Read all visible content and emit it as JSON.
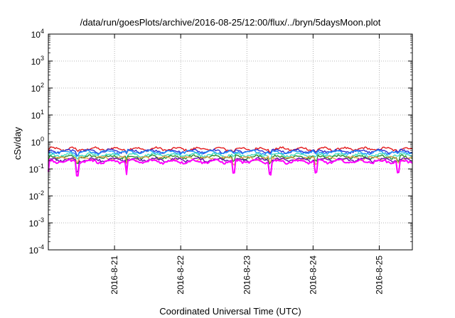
{
  "chart_data": {
    "type": "line",
    "title": "/data/run/goesPlots/archive/2016-08-25/12:00/flux/../bryn/5daysMoon.plot",
    "xlabel": "Coordinated Universal Time (UTC)",
    "ylabel": "cSv/day",
    "y_scale": "log",
    "ylim": [
      0.0001,
      10000
    ],
    "xlim": [
      "2016-08-20 00:00",
      "2016-08-25 12:00"
    ],
    "x_ticks": [
      "2016-8-21",
      "2016-8-22",
      "2016-8-23",
      "2016-8-24",
      "2016-8-25"
    ],
    "y_ticks": [
      {
        "base": "10",
        "exp": "4"
      },
      {
        "base": "10",
        "exp": "3"
      },
      {
        "base": "10",
        "exp": "2"
      },
      {
        "base": "10",
        "exp": "1"
      },
      {
        "base": "10",
        "exp": "0"
      },
      {
        "base": "10",
        "exp": "-1"
      },
      {
        "base": "10",
        "exp": "-2"
      },
      {
        "base": "10",
        "exp": "-3"
      },
      {
        "base": "10",
        "exp": "-4"
      }
    ],
    "grid": true,
    "legend": "none",
    "series": [
      {
        "color": "#e41a1c",
        "base": 0.55
      },
      {
        "color": "#2f2fd0",
        "base": 0.46
      },
      {
        "color": "#1e90ff",
        "base": 0.42
      },
      {
        "color": "#40e0c0",
        "base": 0.33
      },
      {
        "color": "#2e8b2e",
        "base": 0.28
      },
      {
        "color": "#e8a050",
        "base": 0.25
      },
      {
        "color": "#6a0dad",
        "base": 0.22
      },
      {
        "color": "#ff00ff",
        "base": 0.19
      }
    ]
  }
}
